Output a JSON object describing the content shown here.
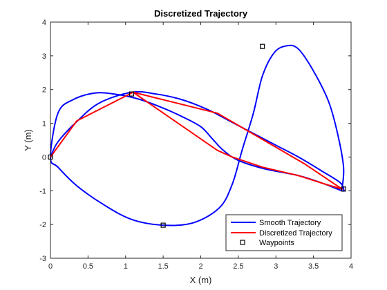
{
  "chart_data": {
    "type": "line",
    "title": "Discretized Trajectory",
    "xlabel": "X (m)",
    "ylabel": "Y (m)",
    "xlim": [
      0,
      4
    ],
    "ylim": [
      -3,
      4
    ],
    "xticks": [
      "0",
      "0.5",
      "1",
      "1.5",
      "2",
      "2.5",
      "3",
      "3.5",
      "4"
    ],
    "yticks": [
      "-3",
      "-2",
      "-1",
      "0",
      "1",
      "2",
      "3",
      "4"
    ],
    "grid": false,
    "legend_position": "bottom-right",
    "series": [
      {
        "name": "Smooth Trajectory",
        "color": "#0000ff",
        "style": "smooth",
        "x": [
          0,
          0.1,
          0.35,
          0.65,
          1.08,
          1.4,
          1.75,
          2.1,
          2.4,
          2.7,
          3.0,
          3.3,
          3.6,
          3.85,
          3.9,
          3.88,
          3.65,
          3.3,
          2.85,
          2.5,
          2.3,
          2.15,
          2.0,
          1.75,
          1.5,
          1.2,
          0.9,
          0.6,
          0.3,
          0.1,
          0,
          0.1,
          0.35,
          0.7,
          1.08,
          1.5,
          1.9,
          2.25,
          2.42,
          2.55,
          2.7,
          2.82,
          2.98,
          3.15,
          3.3,
          3.5,
          3.7,
          3.82,
          3.9,
          3.88
        ],
        "y": [
          0,
          0.45,
          1.05,
          1.6,
          1.92,
          1.87,
          1.7,
          1.4,
          1.05,
          0.7,
          0.35,
          0.0,
          -0.4,
          -0.75,
          -0.95,
          -1.0,
          -0.8,
          -0.55,
          -0.35,
          -0.1,
          0.2,
          0.55,
          0.9,
          1.2,
          1.45,
          1.7,
          1.85,
          1.9,
          1.7,
          1.3,
          0,
          -0.3,
          -0.85,
          -1.4,
          -1.85,
          -2.02,
          -1.95,
          -1.5,
          -0.8,
          0.2,
          1.3,
          2.4,
          3.1,
          3.3,
          3.2,
          2.55,
          1.65,
          0.7,
          -0.3,
          -0.95
        ]
      },
      {
        "name": "Discretized Trajectory",
        "color": "#ff0000",
        "style": "segments",
        "x": [
          0,
          0.35,
          1.1,
          2.22,
          3.38,
          3.88,
          3.65,
          3.3,
          2.82,
          2.42,
          2.22,
          1.1,
          0.35,
          0
        ],
        "y": [
          0,
          1.07,
          1.92,
          1.3,
          -0.2,
          -0.95,
          -0.8,
          -0.55,
          -0.3,
          0.0,
          0.2,
          1.92,
          1.07,
          0
        ]
      },
      {
        "name": "Waypoints",
        "color": "#000000",
        "style": "markers",
        "x": [
          0,
          1.08,
          1.5,
          2.82,
          3.9
        ],
        "y": [
          0,
          1.87,
          -2.02,
          3.28,
          -0.95
        ]
      }
    ]
  }
}
